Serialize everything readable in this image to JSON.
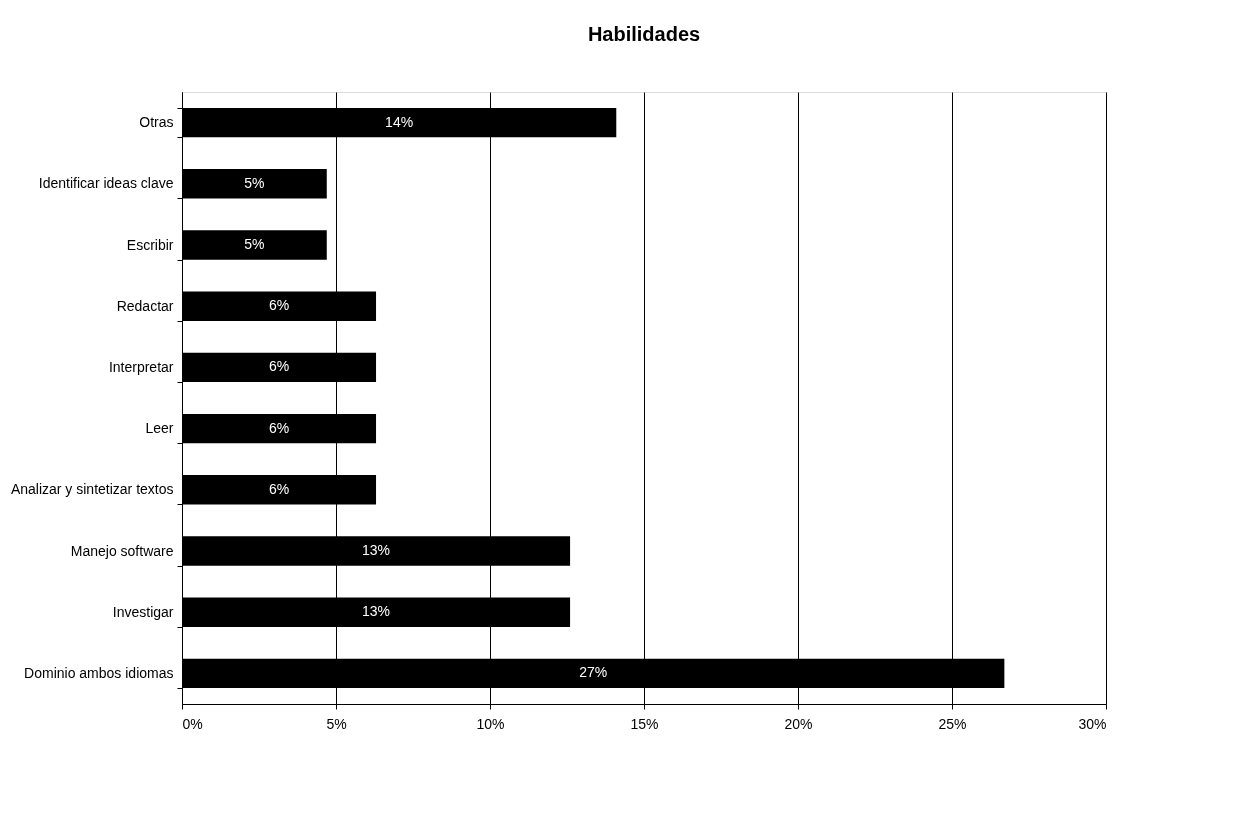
{
  "chart_data": {
    "type": "bar",
    "orientation": "horizontal",
    "title": "Habilidades",
    "categories": [
      "Otras",
      "Identificar ideas clave",
      "Escribir",
      "Redactar",
      "Interpretar",
      "Leer",
      "Analizar y sintetizar textos",
      "Manejo software",
      "Investigar",
      "Dominio ambos idiomas"
    ],
    "values": [
      14.1,
      4.7,
      4.7,
      6.3,
      6.3,
      6.3,
      6.3,
      12.6,
      12.6,
      26.7
    ],
    "value_labels": [
      "14%",
      "5%",
      "5%",
      "6%",
      "6%",
      "6%",
      "6%",
      "13%",
      "13%",
      "27%"
    ],
    "color": "#000000",
    "xlim": [
      0,
      30
    ],
    "xticks": [
      {
        "value": 0,
        "label": "0%"
      },
      {
        "value": 5,
        "label": "5%"
      },
      {
        "value": 10,
        "label": "10%"
      },
      {
        "value": 15,
        "label": "15%"
      },
      {
        "value": 20,
        "label": "20%"
      },
      {
        "value": 25,
        "label": "25%"
      },
      {
        "value": 30,
        "label": "30%"
      }
    ],
    "grid": "x"
  }
}
